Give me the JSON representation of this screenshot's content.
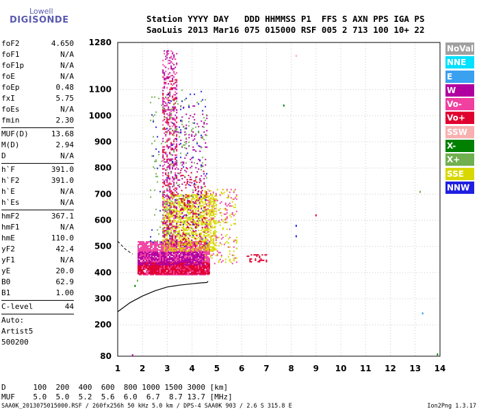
{
  "logo": {
    "line1": "Lowell",
    "line2": "DIGISONDE"
  },
  "header": {
    "labels": [
      "Station",
      "YYYY",
      "DAY",
      "DDD",
      "HHMMSS",
      "P1",
      "FFS",
      "S",
      "AXN",
      "PPS",
      "IGA",
      "PS"
    ],
    "values": [
      "SaoLuis",
      "2013",
      "Mar16",
      "075",
      "015000",
      "RSF",
      "005",
      "2",
      "713",
      "100",
      "10+",
      "22"
    ]
  },
  "params_group1": [
    {
      "label": "foF2",
      "value": "4.650"
    },
    {
      "label": "foF1",
      "value": "N/A"
    },
    {
      "label": "foF1p",
      "value": "N/A"
    },
    {
      "label": "foE",
      "value": "N/A"
    },
    {
      "label": "foEp",
      "value": "0.48"
    },
    {
      "label": "fxI",
      "value": "5.75"
    },
    {
      "label": "foEs",
      "value": "N/A"
    },
    {
      "label": "fmin",
      "value": "2.30"
    }
  ],
  "params_group2": [
    {
      "label": "MUF(D)",
      "value": "13.68"
    },
    {
      "label": "M(D)",
      "value": "2.94"
    },
    {
      "label": "D",
      "value": "N/A"
    }
  ],
  "params_group3": [
    {
      "label": "h`F",
      "value": "391.0"
    },
    {
      "label": "h`F2",
      "value": "391.0"
    },
    {
      "label": "h`E",
      "value": "N/A"
    },
    {
      "label": "h`Es",
      "value": "N/A"
    }
  ],
  "params_group4": [
    {
      "label": "hmF2",
      "value": "367.1"
    },
    {
      "label": "hmF1",
      "value": "N/A"
    },
    {
      "label": "hmE",
      "value": "110.0"
    },
    {
      "label": "yF2",
      "value": "42.4"
    },
    {
      "label": "yF1",
      "value": "N/A"
    },
    {
      "label": "yE",
      "value": "20.0"
    },
    {
      "label": "B0",
      "value": "62.9"
    },
    {
      "label": "B1",
      "value": "1.00"
    }
  ],
  "params_group5": [
    {
      "label": "C-level",
      "value": "44"
    }
  ],
  "autoscale": {
    "line1": "Auto:",
    "line2": "Artist5",
    "line3": "500200"
  },
  "legend": [
    {
      "label": "NoVal",
      "color": "#a0a0a0"
    },
    {
      "label": "NNE",
      "color": "#00e0ff"
    },
    {
      "label": "E",
      "color": "#3aa0f0"
    },
    {
      "label": "W",
      "color": "#b000a0"
    },
    {
      "label": "Vo-",
      "color": "#f040a0"
    },
    {
      "label": "Vo+",
      "color": "#e00030"
    },
    {
      "label": "SSW",
      "color": "#f8b0b0"
    },
    {
      "label": "X-",
      "color": "#008000"
    },
    {
      "label": "X+",
      "color": "#70b050"
    },
    {
      "label": "SSE",
      "color": "#d8d800"
    },
    {
      "label": "NNW",
      "color": "#2020e0"
    }
  ],
  "muf_table": {
    "d_label": "D",
    "distances": [
      "100",
      "200",
      "400",
      "600",
      "800",
      "1000",
      "1500",
      "3000"
    ],
    "d_unit": "[km]",
    "muf_label": "MUF",
    "mufs": [
      "5.0",
      "5.0",
      "5.2",
      "5.6",
      "6.0",
      "6.7",
      "8.7",
      "13.7"
    ],
    "muf_unit": "[MHz]"
  },
  "footer": {
    "left": "SAA0K_2013075015000.RSF / 260fx256h 50 kHz 5.0 km / DPS-4 SAA0K 903 / 2.6 S 315.8 E",
    "right": "Ion2Png 1.3.17"
  },
  "chart_data": {
    "type": "scatter",
    "x_ticks": [
      1,
      2,
      3,
      4,
      5,
      6,
      7,
      8,
      9,
      10,
      11,
      12,
      13,
      14
    ],
    "y_ticks": [
      80,
      200,
      300,
      400,
      500,
      600,
      700,
      800,
      900,
      1000,
      1100,
      1280
    ],
    "xlim": [
      1,
      14
    ],
    "ylim": [
      80,
      1280
    ],
    "grid": true,
    "trace": {
      "x": [
        1.0,
        1.5,
        2.0,
        2.5,
        3.0,
        3.5,
        4.0,
        4.3,
        4.6,
        4.65
      ],
      "y": [
        250,
        285,
        310,
        330,
        345,
        352,
        357,
        360,
        362,
        367
      ]
    },
    "trace_dashed": {
      "x": [
        1.0,
        1.3,
        1.6
      ],
      "y": [
        520,
        490,
        470
      ]
    },
    "echo_clusters": [
      {
        "x": [
          1.8,
          4.7
        ],
        "y": [
          390,
          520
        ],
        "color": "#f040a0",
        "density": 0.9
      },
      {
        "x": [
          1.8,
          4.7
        ],
        "y": [
          395,
          440
        ],
        "color": "#e00030",
        "density": 0.8
      },
      {
        "x": [
          1.8,
          4.5
        ],
        "y": [
          430,
          480
        ],
        "color": "#b000a0",
        "density": 0.6
      },
      {
        "x": [
          2.8,
          5.0
        ],
        "y": [
          480,
          700
        ],
        "color": "#d8d800",
        "density": 0.5
      },
      {
        "x": [
          2.8,
          3.4
        ],
        "y": [
          500,
          1250
        ],
        "color": "#b000a0",
        "density": 0.18
      },
      {
        "x": [
          2.8,
          3.4
        ],
        "y": [
          500,
          1250
        ],
        "color": "#f040a0",
        "density": 0.12
      },
      {
        "x": [
          2.8,
          3.4
        ],
        "y": [
          500,
          1150
        ],
        "color": "#e00030",
        "density": 0.1
      },
      {
        "x": [
          3.3,
          4.6
        ],
        "y": [
          500,
          1050
        ],
        "color": "#b000a0",
        "density": 0.08
      },
      {
        "x": [
          3.5,
          4.6
        ],
        "y": [
          500,
          800
        ],
        "color": "#e00030",
        "density": 0.12
      },
      {
        "x": [
          4.5,
          5.8
        ],
        "y": [
          430,
          720
        ],
        "color": "#f040a0",
        "density": 0.08
      },
      {
        "x": [
          4.5,
          5.8
        ],
        "y": [
          440,
          720
        ],
        "color": "#d8d800",
        "density": 0.1
      },
      {
        "x": [
          6.2,
          7.0
        ],
        "y": [
          440,
          470
        ],
        "color": "#e00030",
        "density": 0.3
      },
      {
        "x": [
          2.3,
          4.6
        ],
        "y": [
          500,
          1100
        ],
        "color": "#70b050",
        "density": 0.04
      },
      {
        "x": [
          2.3,
          4.6
        ],
        "y": [
          500,
          1100
        ],
        "color": "#2020e0",
        "density": 0.02
      }
    ],
    "isolated_points": [
      {
        "x": 8.2,
        "y": 580,
        "color": "#2020e0"
      },
      {
        "x": 8.2,
        "y": 540,
        "color": "#2020e0"
      },
      {
        "x": 9.0,
        "y": 620,
        "color": "#e00030"
      },
      {
        "x": 7.7,
        "y": 1040,
        "color": "#008000"
      },
      {
        "x": 8.2,
        "y": 1230,
        "color": "#f8b0b0"
      },
      {
        "x": 13.2,
        "y": 710,
        "color": "#70b050"
      },
      {
        "x": 13.3,
        "y": 245,
        "color": "#3aa0f0"
      },
      {
        "x": 13.9,
        "y": 88,
        "color": "#008000"
      },
      {
        "x": 1.6,
        "y": 85,
        "color": "#b000a0"
      },
      {
        "x": 1.7,
        "y": 350,
        "color": "#008000"
      },
      {
        "x": 1.8,
        "y": 370,
        "color": "#70b050"
      }
    ]
  }
}
